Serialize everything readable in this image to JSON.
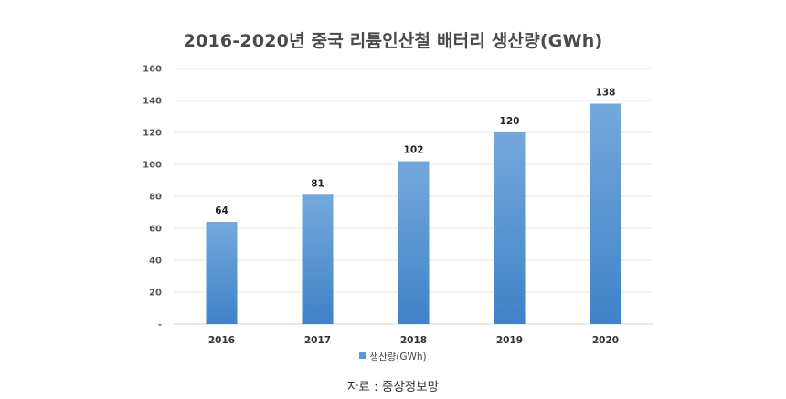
{
  "chart_data": {
    "type": "bar",
    "title": "2016-2020년 중국 리튬인산철 배터리 생산량(GWh)",
    "categories": [
      "2016",
      "2017",
      "2018",
      "2019",
      "2020"
    ],
    "series": [
      {
        "name": "생산량(GWh)",
        "values": [
          64,
          81,
          102,
          120,
          138
        ]
      }
    ],
    "data_labels": [
      "64",
      "81",
      "102",
      "120",
      "138"
    ],
    "ytick_labels": [
      "-",
      "20",
      "40",
      "60",
      "80",
      "100",
      "120",
      "140",
      "160"
    ],
    "ylim": [
      0,
      160
    ],
    "grid": true,
    "legend_position": "bottom",
    "bar_color": "#5b9bd5"
  },
  "source_note": "자료 : 중상정보망"
}
